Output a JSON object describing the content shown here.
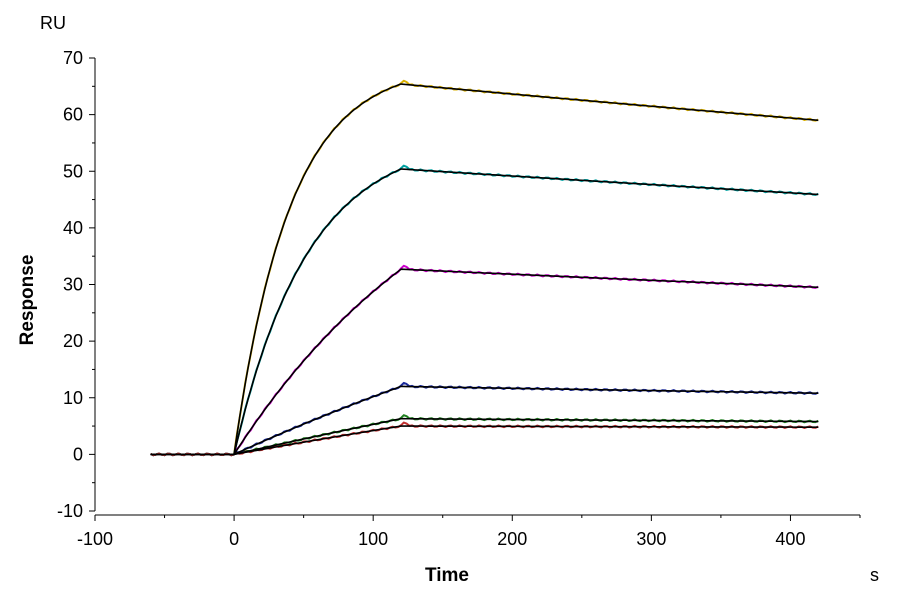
{
  "chart_data": {
    "type": "line",
    "title": "",
    "xlabel": "Time",
    "ylabel": "Response",
    "x_unit": "s",
    "y_unit": "RU",
    "xlim": [
      -100,
      450
    ],
    "ylim": [
      -10,
      70
    ],
    "x_ticks": [
      -100,
      0,
      100,
      200,
      300,
      400
    ],
    "y_ticks": [
      -10,
      0,
      10,
      20,
      30,
      40,
      50,
      60,
      70
    ],
    "x_tick_labels": [
      "-100",
      "0",
      "100",
      "200",
      "300",
      "400"
    ],
    "y_tick_labels": [
      "-10",
      "0",
      "10",
      "20",
      "30",
      "40",
      "50",
      "60",
      "70"
    ],
    "grid": false,
    "legend": "none",
    "association_start": 0,
    "dissociation_start": 120,
    "baseline_start": -60,
    "end_time": 420,
    "series": [
      {
        "color": "#d9b000",
        "peak": 65.4,
        "end": 59.0,
        "kobs": 0.025
      },
      {
        "color": "#00a0a0",
        "peak": 50.4,
        "end": 45.9,
        "kobs": 0.019
      },
      {
        "color": "#cc00cc",
        "peak": 32.7,
        "end": 29.5,
        "kobs": 0.006
      },
      {
        "color": "#1a2a9a",
        "peak": 12.0,
        "end": 10.8,
        "kobs": 0.002
      },
      {
        "color": "#208020",
        "peak": 6.3,
        "end": 5.8,
        "kobs": 0.001
      },
      {
        "color": "#c03030",
        "peak": 5.0,
        "end": 4.8,
        "kobs": 0.001
      }
    ]
  }
}
